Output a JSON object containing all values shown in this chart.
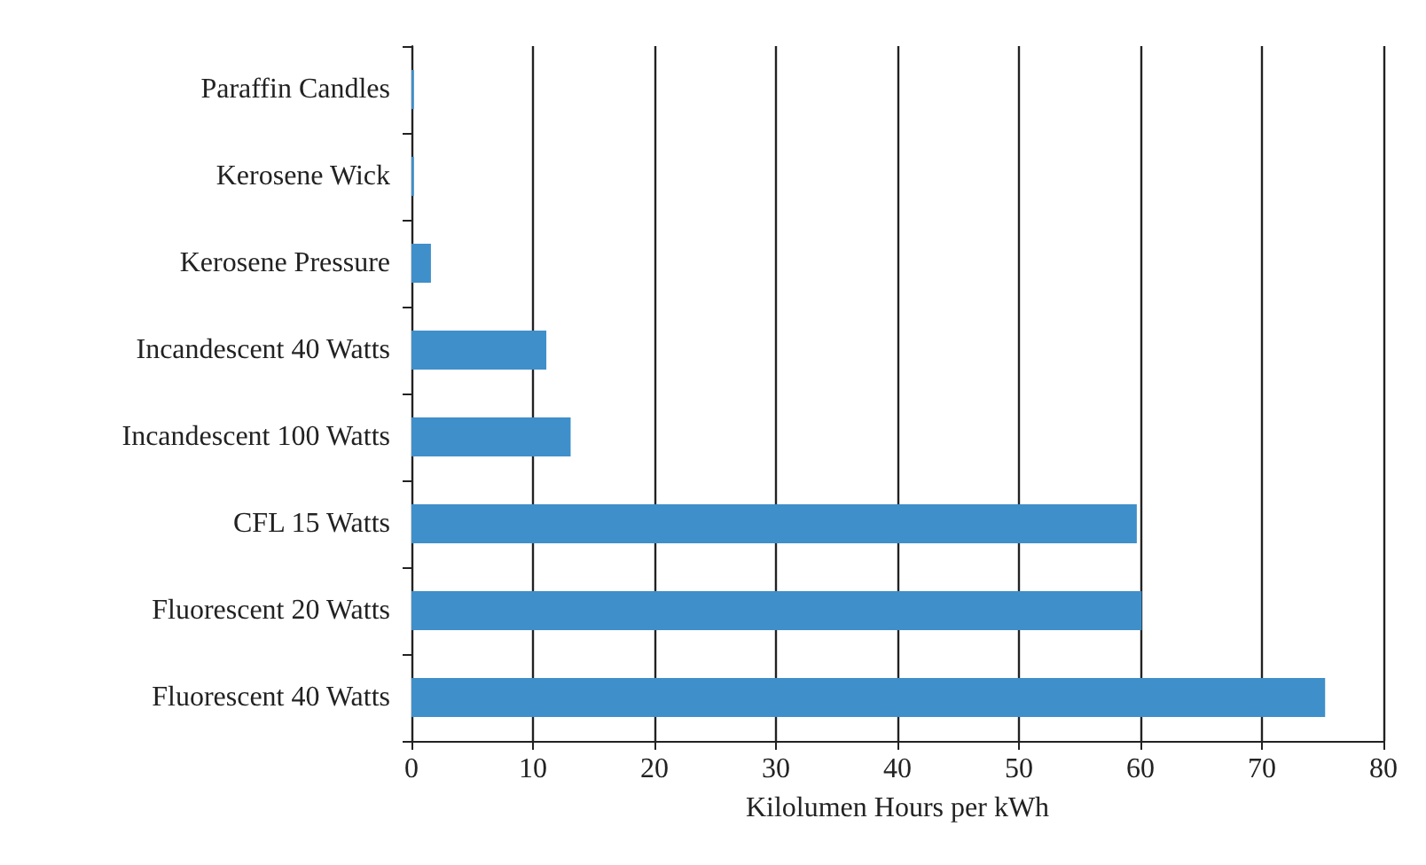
{
  "chart_data": {
    "type": "bar",
    "orientation": "horizontal",
    "xlabel": "Kilolumen Hours per kWh",
    "categories": [
      "Paraffin Candles",
      "Kerosene Wick",
      "Kerosene Pressure",
      "Incandescent 40 Watts",
      "Incandescent 100 Watts",
      "CFL 15 Watts",
      "Fluorescent 20 Watts",
      "Fluorescent 40 Watts"
    ],
    "values": [
      0.2,
      0.2,
      1.6,
      11.1,
      13.1,
      59.7,
      60.1,
      75.2
    ],
    "color": "#3f8fca",
    "xlim": [
      0,
      80
    ],
    "xticks": [
      0,
      10,
      20,
      30,
      40,
      50,
      60,
      70,
      80
    ],
    "grid": "x"
  }
}
